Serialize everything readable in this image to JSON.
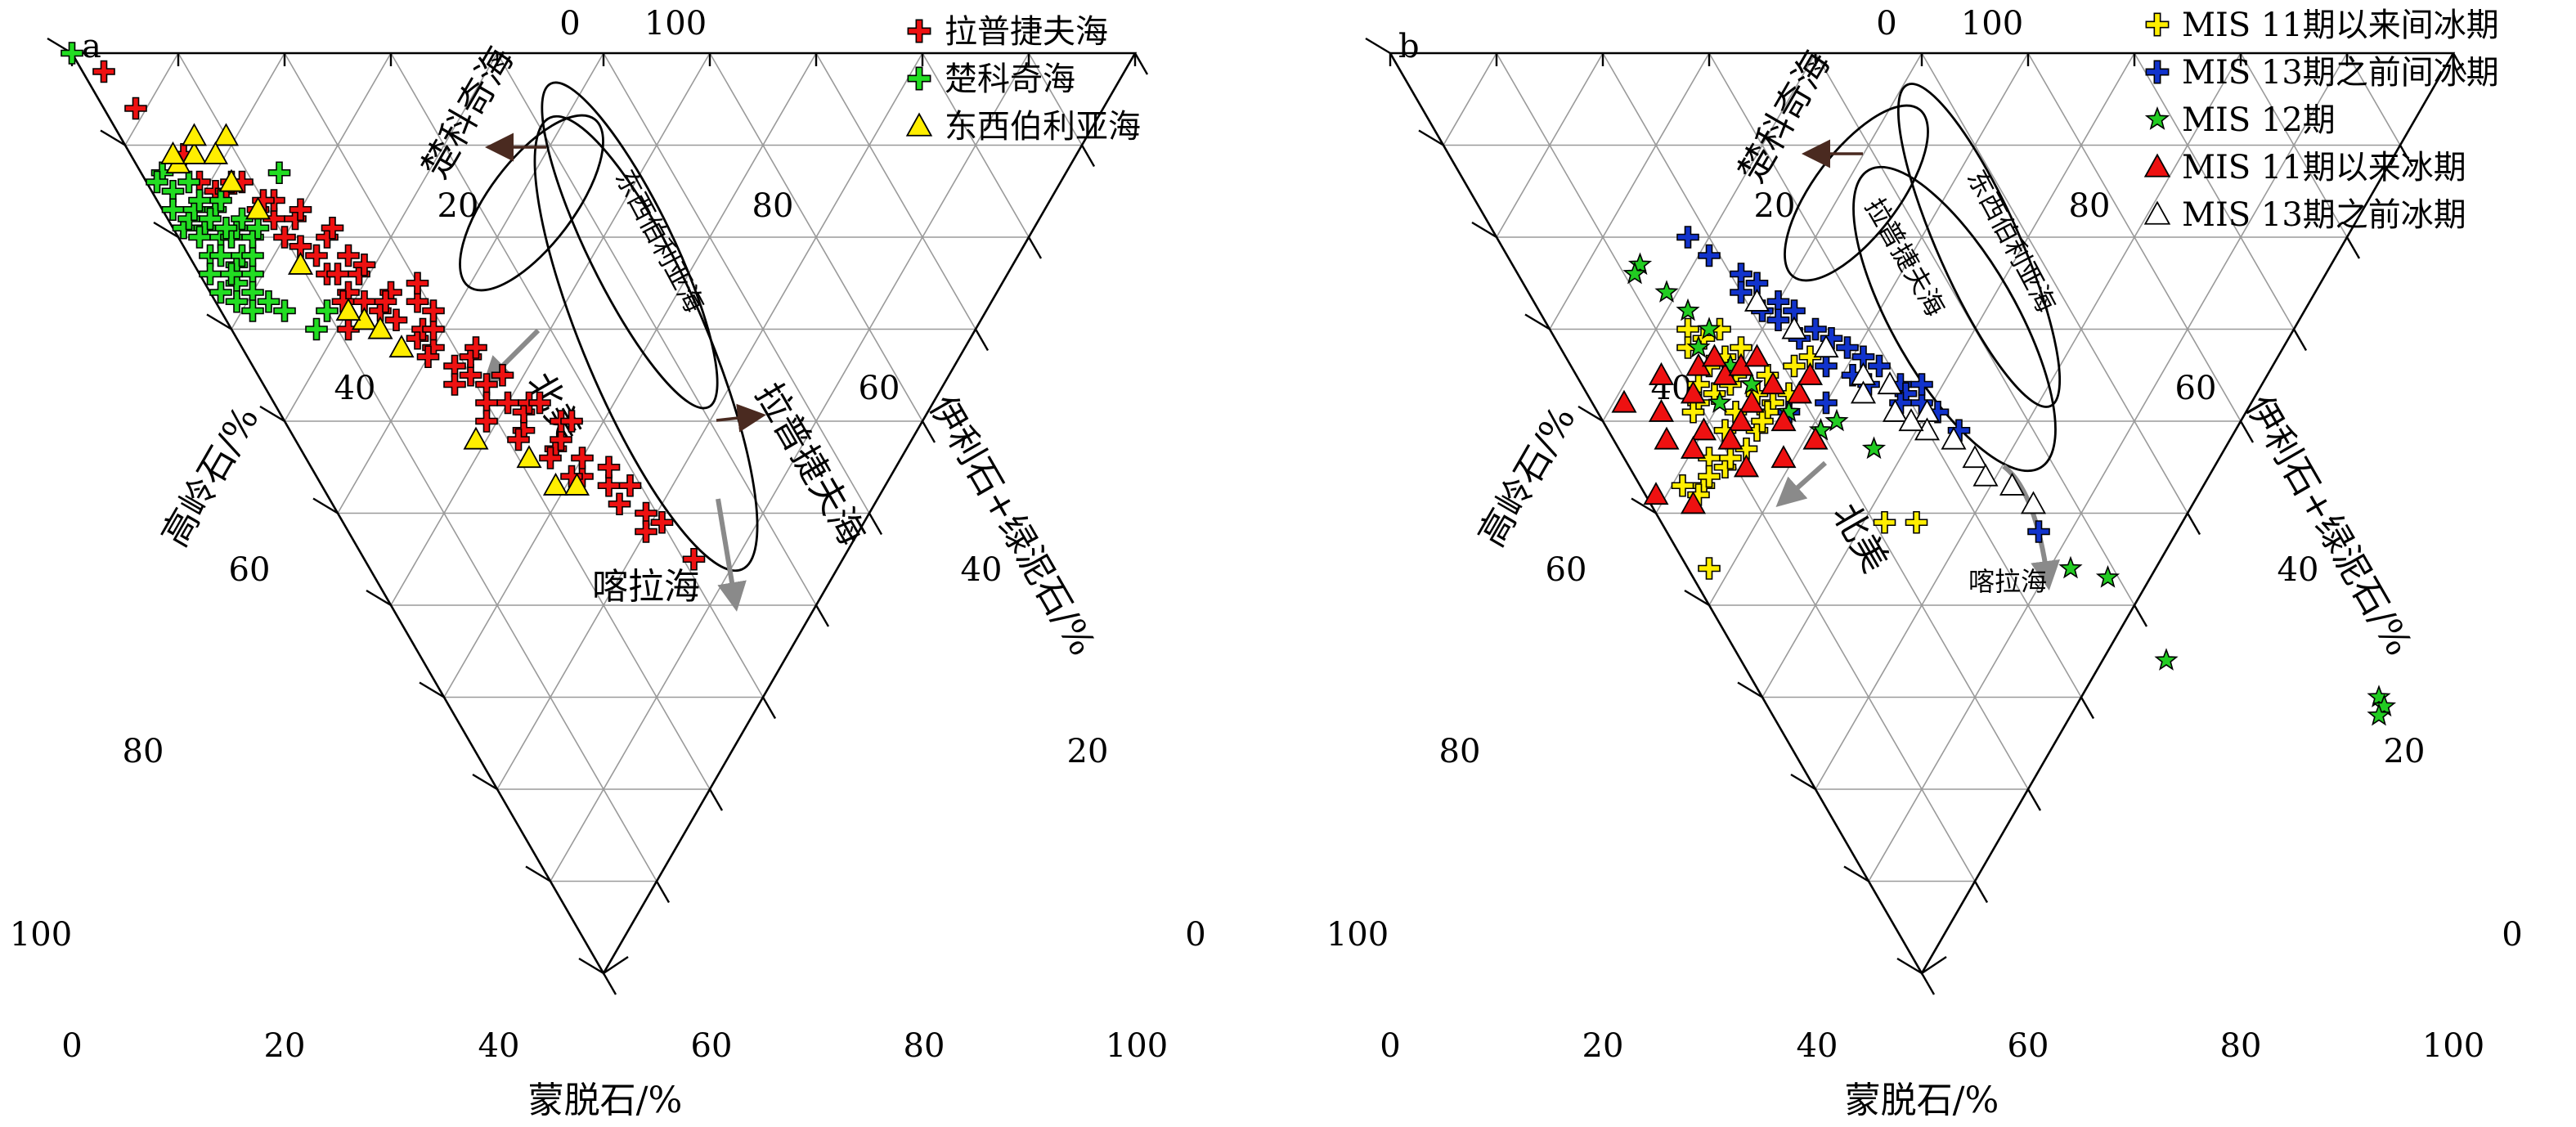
{
  "panels": {
    "a": {
      "letter": "a",
      "axis_labels": {
        "bottom": "蒙脱石/%",
        "left": "高岭石/%",
        "right": "伊利石+绿泥石/%"
      },
      "bottom_ticks": [
        "0",
        "20",
        "40",
        "60",
        "80",
        "100"
      ],
      "left_ticks": [
        "0",
        "20",
        "40",
        "60",
        "80",
        "100"
      ],
      "right_ticks": [
        "0",
        "20",
        "40",
        "60",
        "80",
        "100"
      ],
      "regions": {
        "chukchi": "楚科奇海",
        "laptev": "拉普捷夫海",
        "kara": "喀拉海",
        "north_america": "北美",
        "east_siberian_ellipse": "东西伯利亚海"
      },
      "legend": [
        "拉普捷夫海",
        "楚科奇海",
        "东西伯利亚海"
      ]
    },
    "b": {
      "letter": "b",
      "axis_labels": {
        "bottom": "蒙脱石/%",
        "left": "高岭石/%",
        "right": "伊利石+绿泥石/%"
      },
      "bottom_ticks": [
        "0",
        "20",
        "40",
        "60",
        "80",
        "100"
      ],
      "left_ticks": [
        "0",
        "20",
        "40",
        "60",
        "80",
        "100"
      ],
      "right_ticks": [
        "0",
        "20",
        "40",
        "60",
        "80",
        "100"
      ],
      "regions": {
        "chukchi": "楚科奇海",
        "north_america": "北美",
        "kara": "喀拉海",
        "east_siberian_ellipse": "东西伯利亚海",
        "laptev_ellipse": "拉普捷夫海"
      },
      "legend": [
        "MIS 11期以来间冰期",
        "MIS 13期之前间冰期",
        "MIS 12期",
        "MIS 11期以来冰期",
        "MIS 13期之前冰期"
      ]
    }
  },
  "chart_data": [
    {
      "type": "scatter",
      "subtype": "ternary",
      "panel": "a",
      "axes": {
        "bottom": "蒙脱石/%",
        "left": "高岭石/%",
        "right": "伊利石+绿泥石/%"
      },
      "ranges": {
        "smectite": [
          0,
          100
        ],
        "kaolinite": [
          0,
          100
        ],
        "illite_chlorite": [
          0,
          100
        ]
      },
      "grid": true,
      "legend_position": "top-right",
      "series": [
        {
          "name": "拉普捷夫海",
          "marker": "plus",
          "color": "#ee1111",
          "points": [
            [
              2,
              2
            ],
            [
              3,
              6
            ],
            [
              5,
              11
            ],
            [
              5,
              14
            ],
            [
              6,
              15
            ],
            [
              7,
              15
            ],
            [
              8,
              14
            ],
            [
              9,
              14
            ],
            [
              9,
              17
            ],
            [
              10,
              18
            ],
            [
              10,
              20
            ],
            [
              11,
              21
            ],
            [
              12,
              22
            ],
            [
              12,
              24
            ],
            [
              13,
              26
            ],
            [
              13,
              24
            ],
            [
              14,
              27
            ],
            [
              15,
              28
            ],
            [
              15,
              24
            ],
            [
              16,
              23
            ],
            [
              16,
              29
            ],
            [
              17,
              31
            ],
            [
              18,
              32
            ],
            [
              18,
              30
            ],
            [
              19,
              34
            ],
            [
              20,
              35
            ],
            [
              19,
              27
            ],
            [
              20,
              25
            ],
            [
              21,
              36
            ],
            [
              22,
              38
            ],
            [
              22,
              41
            ],
            [
              23,
              39
            ],
            [
              24,
              43
            ],
            [
              25,
              46
            ],
            [
              25,
              42
            ],
            [
              26,
              44
            ],
            [
              27,
              47
            ],
            [
              27,
              49
            ],
            [
              28,
              45
            ],
            [
              29,
              50
            ],
            [
              30,
              51
            ],
            [
              14,
              20
            ],
            [
              15,
              22
            ],
            [
              17,
              26
            ],
            [
              19,
              30
            ],
            [
              21,
              33
            ],
            [
              23,
              35
            ],
            [
              24,
              38
            ],
            [
              26,
              40
            ],
            [
              12,
              18
            ],
            [
              13,
              17
            ],
            [
              11,
              16
            ],
            [
              10,
              16
            ],
            [
              15,
              19
            ],
            [
              16,
              27
            ],
            [
              18,
              36
            ],
            [
              20,
              38
            ],
            [
              22,
              32
            ],
            [
              24,
              46
            ],
            [
              29,
              47
            ],
            [
              31,
              55
            ],
            [
              20,
              28
            ],
            [
              17,
              33
            ],
            [
              23,
              44
            ],
            [
              25,
              38
            ],
            [
              28,
              52
            ],
            [
              27,
              40
            ],
            [
              19,
              40
            ],
            [
              21,
              42
            ],
            [
              11,
              30
            ],
            [
              12,
              27
            ]
          ]
        },
        {
          "name": "楚科奇海",
          "marker": "plus",
          "color": "#22dd22",
          "points": [
            [
              0,
              0
            ],
            [
              4,
              14
            ],
            [
              2,
              13
            ],
            [
              1,
              14
            ],
            [
              2,
              15
            ],
            [
              1,
              17
            ],
            [
              1,
              19
            ],
            [
              2,
              18
            ],
            [
              3,
              17
            ],
            [
              3,
              19
            ],
            [
              2,
              20
            ],
            [
              2,
              22
            ],
            [
              4,
              20
            ],
            [
              3,
              22
            ],
            [
              4,
              23
            ],
            [
              3,
              25
            ],
            [
              5,
              20
            ],
            [
              5,
              17
            ],
            [
              5,
              22
            ],
            [
              6,
              19
            ],
            [
              5,
              24
            ],
            [
              4,
              26
            ],
            [
              6,
              22
            ],
            [
              6,
              16
            ],
            [
              4,
              18
            ],
            [
              7,
              20
            ],
            [
              3,
              24
            ],
            [
              1,
              24
            ],
            [
              1,
              26
            ],
            [
              2,
              27
            ],
            [
              3,
              28
            ],
            [
              5,
              27
            ],
            [
              6,
              28
            ],
            [
              7,
              18
            ],
            [
              8,
              19
            ],
            [
              10,
              28
            ],
            [
              13,
              13
            ],
            [
              8,
              30
            ],
            [
              4,
              16
            ],
            [
              5,
              19
            ]
          ]
        },
        {
          "name": "东西伯利亚海",
          "marker": "triangle",
          "color": "#ffee00",
          "points": [
            [
              4,
              12
            ],
            [
              6,
              11
            ],
            [
              7,
              9
            ],
            [
              10,
              9
            ],
            [
              8,
              14
            ],
            [
              9,
              17
            ],
            [
              4,
              11
            ],
            [
              10,
              23
            ],
            [
              13,
              29
            ],
            [
              14,
              30
            ],
            [
              15,
              32
            ],
            [
              17,
              42
            ],
            [
              21,
              44
            ],
            [
              22,
              47
            ],
            [
              24,
              47
            ],
            [
              8,
              11
            ],
            [
              12,
              28
            ]
          ]
        }
      ]
    },
    {
      "type": "scatter",
      "subtype": "ternary",
      "panel": "b",
      "axes": {
        "bottom": "蒙脱石/%",
        "left": "高岭石/%",
        "right": "伊利石+绿泥石/%"
      },
      "ranges": {
        "smectite": [
          0,
          100
        ],
        "kaolinite": [
          0,
          100
        ],
        "illite_chlorite": [
          0,
          100
        ]
      },
      "grid": true,
      "legend_position": "top-right",
      "series": [
        {
          "name": "MIS 11期以来间冰期",
          "marker": "plus",
          "color": "#ffee00",
          "points": [
            [
              13,
              30
            ],
            [
              12,
              32
            ],
            [
              14,
              31
            ],
            [
              15,
              33
            ],
            [
              16,
              30
            ],
            [
              17,
              32
            ],
            [
              15,
              35
            ],
            [
              13,
              34
            ],
            [
              11,
              36
            ],
            [
              12,
              37
            ],
            [
              14,
              36
            ],
            [
              16,
              37
            ],
            [
              18,
              35
            ],
            [
              17,
              38
            ],
            [
              10,
              38
            ],
            [
              9,
              39
            ],
            [
              13,
              39
            ],
            [
              11,
              41
            ],
            [
              14,
              41
            ],
            [
              8,
              44
            ],
            [
              6,
              47
            ],
            [
              9,
              45
            ],
            [
              10,
              44
            ],
            [
              7,
              46
            ],
            [
              5,
              48
            ],
            [
              4,
              47
            ],
            [
              21,
              34
            ],
            [
              19,
              37
            ],
            [
              23,
              33
            ],
            [
              16,
              39
            ],
            [
              2,
              56
            ],
            [
              24,
              51
            ],
            [
              21,
              51
            ],
            [
              15,
              40
            ],
            [
              12,
              43
            ]
          ]
        },
        {
          "name": "MIS 13期之前间冰期",
          "marker": "plus",
          "color": "#1133cc",
          "points": [
            [
              18,
              20
            ],
            [
              19,
              22
            ],
            [
              21,
              24
            ],
            [
              22,
              25
            ],
            [
              20,
              26
            ],
            [
              23,
              27
            ],
            [
              24,
              28
            ],
            [
              22,
              29
            ],
            [
              25,
              30
            ],
            [
              26,
              31
            ],
            [
              27,
              32
            ],
            [
              28,
              33
            ],
            [
              29,
              34
            ],
            [
              30,
              36
            ],
            [
              30,
              37
            ],
            [
              31,
              38
            ],
            [
              32,
              39
            ],
            [
              26,
              35
            ],
            [
              24,
              34
            ],
            [
              23,
              31
            ],
            [
              27,
              36
            ],
            [
              29,
              38
            ],
            [
              21,
              28
            ],
            [
              35,
              52
            ],
            [
              33,
              41
            ],
            [
              18,
              39
            ],
            [
              22,
              38
            ],
            [
              32,
              36
            ]
          ]
        },
        {
          "name": "MIS 12期",
          "marker": "star",
          "color": "#22cc22",
          "points": [
            [
              12,
              23
            ],
            [
              11,
              24
            ],
            [
              13,
              26
            ],
            [
              14,
              28
            ],
            [
              15,
              30
            ],
            [
              13,
              32
            ],
            [
              15,
              34
            ],
            [
              16,
              36
            ],
            [
              18,
              39
            ],
            [
              20,
              41
            ],
            [
              22,
              40
            ],
            [
              24,
              43
            ],
            [
              36,
              56
            ],
            [
              39,
              57
            ],
            [
              40,
              66
            ],
            [
              58,
              70
            ],
            [
              58,
              71
            ],
            [
              57,
              72
            ],
            [
              12,
              38
            ]
          ]
        },
        {
          "name": "MIS 11期以来冰期",
          "marker": "triangle",
          "color": "#ee1111",
          "points": [
            [
              8,
              35
            ],
            [
              10,
              37
            ],
            [
              12,
              34
            ],
            [
              14,
              35
            ],
            [
              16,
              34
            ],
            [
              18,
              36
            ],
            [
              20,
              37
            ],
            [
              17,
              40
            ],
            [
              15,
              38
            ],
            [
              13,
              40
            ],
            [
              11,
              42
            ],
            [
              9,
              41
            ],
            [
              6,
              39
            ],
            [
              3,
              38
            ],
            [
              5,
              42
            ],
            [
              7,
              43
            ],
            [
              1,
              48
            ],
            [
              4,
              49
            ],
            [
              14,
              33
            ],
            [
              18,
              33
            ],
            [
              11,
              45
            ],
            [
              15,
              44
            ],
            [
              19,
              42
            ],
            [
              22,
              35
            ]
          ]
        },
        {
          "name": "MIS 13期之前冰期",
          "marker": "triangle",
          "color": "#ffffff",
          "points": [
            [
              21,
              27
            ],
            [
              23,
              30
            ],
            [
              25,
              32
            ],
            [
              27,
              35
            ],
            [
              29,
              36
            ],
            [
              31,
              39
            ],
            [
              30,
              41
            ],
            [
              28,
              39
            ],
            [
              26,
              37
            ],
            [
              32,
              42
            ],
            [
              33,
              44
            ],
            [
              35,
              47
            ],
            [
              36,
              49
            ],
            [
              33,
              46
            ],
            [
              29,
              40
            ]
          ]
        }
      ]
    }
  ]
}
